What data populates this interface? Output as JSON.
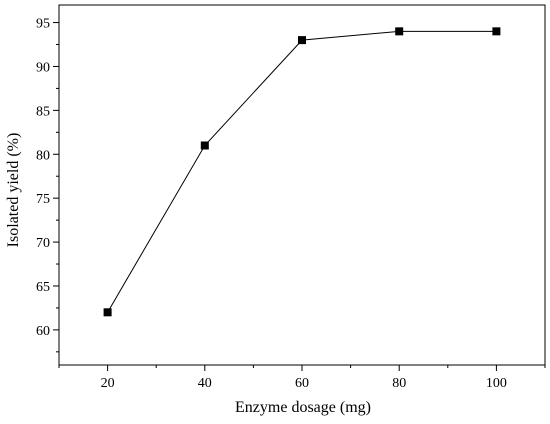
{
  "chart_data": {
    "type": "line",
    "title": "",
    "xlabel": "Enzyme dosage (mg)",
    "ylabel": "Isolated yield (%)",
    "xlim": [
      10,
      110
    ],
    "ylim": [
      56,
      97
    ],
    "x_ticks": [
      20,
      40,
      60,
      80,
      100
    ],
    "y_ticks": [
      60,
      65,
      70,
      75,
      80,
      85,
      90,
      95
    ],
    "grid": false,
    "legend": "none",
    "marker": "square",
    "line_color": "#000000",
    "marker_color": "#000000",
    "series": [
      {
        "x": [
          20,
          40,
          60,
          80,
          100
        ],
        "y": [
          62,
          81,
          93,
          94,
          94
        ]
      }
    ]
  }
}
